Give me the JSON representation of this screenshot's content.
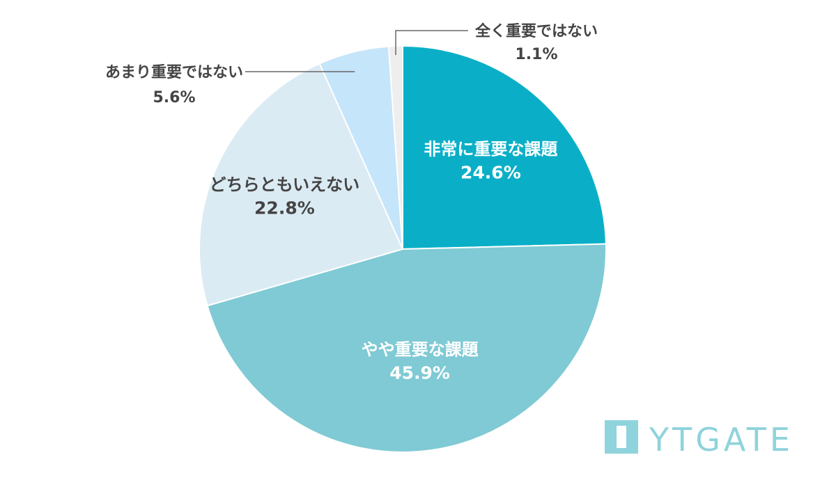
{
  "chart_data": {
    "type": "pie",
    "start": "12 o'clock",
    "direction": "clockwise",
    "slices": [
      {
        "label": "非常に重要な課題",
        "value": 24.6,
        "value_text": "24.6%",
        "color": "#0aafc7",
        "text_color": "#ffffff"
      },
      {
        "label": "やや重要な課題",
        "value": 45.9,
        "value_text": "45.9%",
        "color": "#7fcad4",
        "text_color": "#ffffff"
      },
      {
        "label": "どちらともいえない",
        "value": 22.8,
        "value_text": "22.8%",
        "color": "#dbebf3",
        "text_color": "#444444"
      },
      {
        "label": "あまり重要ではない",
        "value": 5.6,
        "value_text": "5.6%",
        "color": "#c5e5fa",
        "text_color": "#444444"
      },
      {
        "label": "全く重要ではない",
        "value": 1.1,
        "value_text": "1.1%",
        "color": "#eeeeee",
        "text_color": "#444444"
      }
    ]
  },
  "brand": {
    "name": "YTGATE",
    "color": "#8fd3dc"
  }
}
